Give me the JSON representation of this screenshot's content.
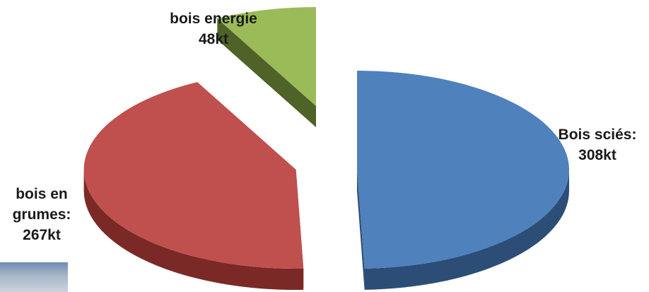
{
  "chart_data": {
    "type": "pie",
    "title": "",
    "unit": "kt",
    "slices": [
      {
        "category": "Bois sciés:",
        "value": 308,
        "value_label": "308kt",
        "color": "#4f81bd",
        "side_color": "#2c4d75",
        "exploded": false
      },
      {
        "category": "bois en grumes:",
        "category_lines": [
          "bois en",
          "grumes:"
        ],
        "value": 267,
        "value_label": "267kt",
        "color": "#c0504d",
        "side_color": "#7a2927",
        "exploded": false
      },
      {
        "category": "bois energie",
        "value": 48,
        "value_label": "48kt",
        "color": "#9bbb59",
        "side_color": "#4f6228",
        "exploded": true
      }
    ],
    "legend": "none",
    "style": "3d"
  }
}
